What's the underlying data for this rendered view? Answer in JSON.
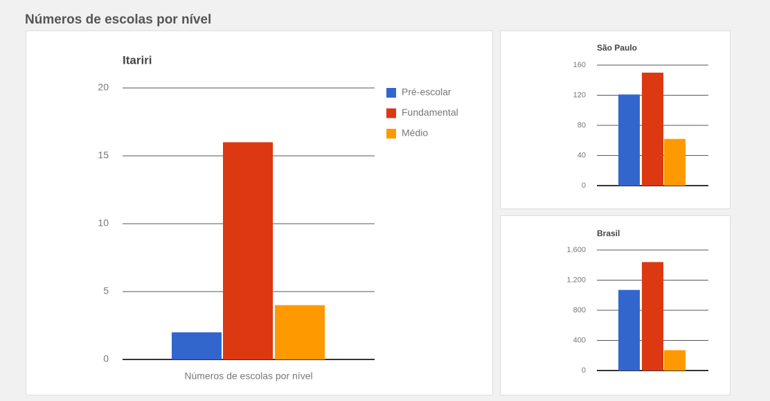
{
  "header": {
    "title": "Números de escolas por nível"
  },
  "chart_data": [
    {
      "type": "bar",
      "title": "Itariri",
      "categories": [
        "Números de escolas por nível"
      ],
      "series": [
        {
          "name": "Pré-escolar",
          "color": "#3366cc",
          "values": [
            2
          ]
        },
        {
          "name": "Fundamental",
          "color": "#dc3912",
          "values": [
            16
          ]
        },
        {
          "name": "Médio",
          "color": "#ff9900",
          "values": [
            4
          ]
        }
      ],
      "ylim": [
        0,
        20
      ],
      "yticks": [
        0,
        5,
        10,
        15,
        20
      ],
      "grid": true,
      "legend": "right"
    },
    {
      "type": "bar",
      "title": "São Paulo",
      "values": [
        121,
        150,
        62
      ],
      "colors": [
        "#3366cc",
        "#dc3912",
        "#ff9900"
      ],
      "ylim": [
        0,
        160
      ],
      "yticks": [
        0,
        40,
        80,
        120,
        160
      ],
      "grid": true
    },
    {
      "type": "bar",
      "title": "Brasil",
      "values": [
        1070,
        1440,
        270
      ],
      "colors": [
        "#3366cc",
        "#dc3912",
        "#ff9900"
      ],
      "ylim": [
        0,
        1600
      ],
      "yticks": [
        0,
        {
          "value": 400,
          "label": "400"
        },
        {
          "value": 800,
          "label": "800"
        },
        {
          "value": 1200,
          "label": "1.200"
        },
        {
          "value": 1600,
          "label": "1.600"
        }
      ],
      "grid": true
    }
  ]
}
